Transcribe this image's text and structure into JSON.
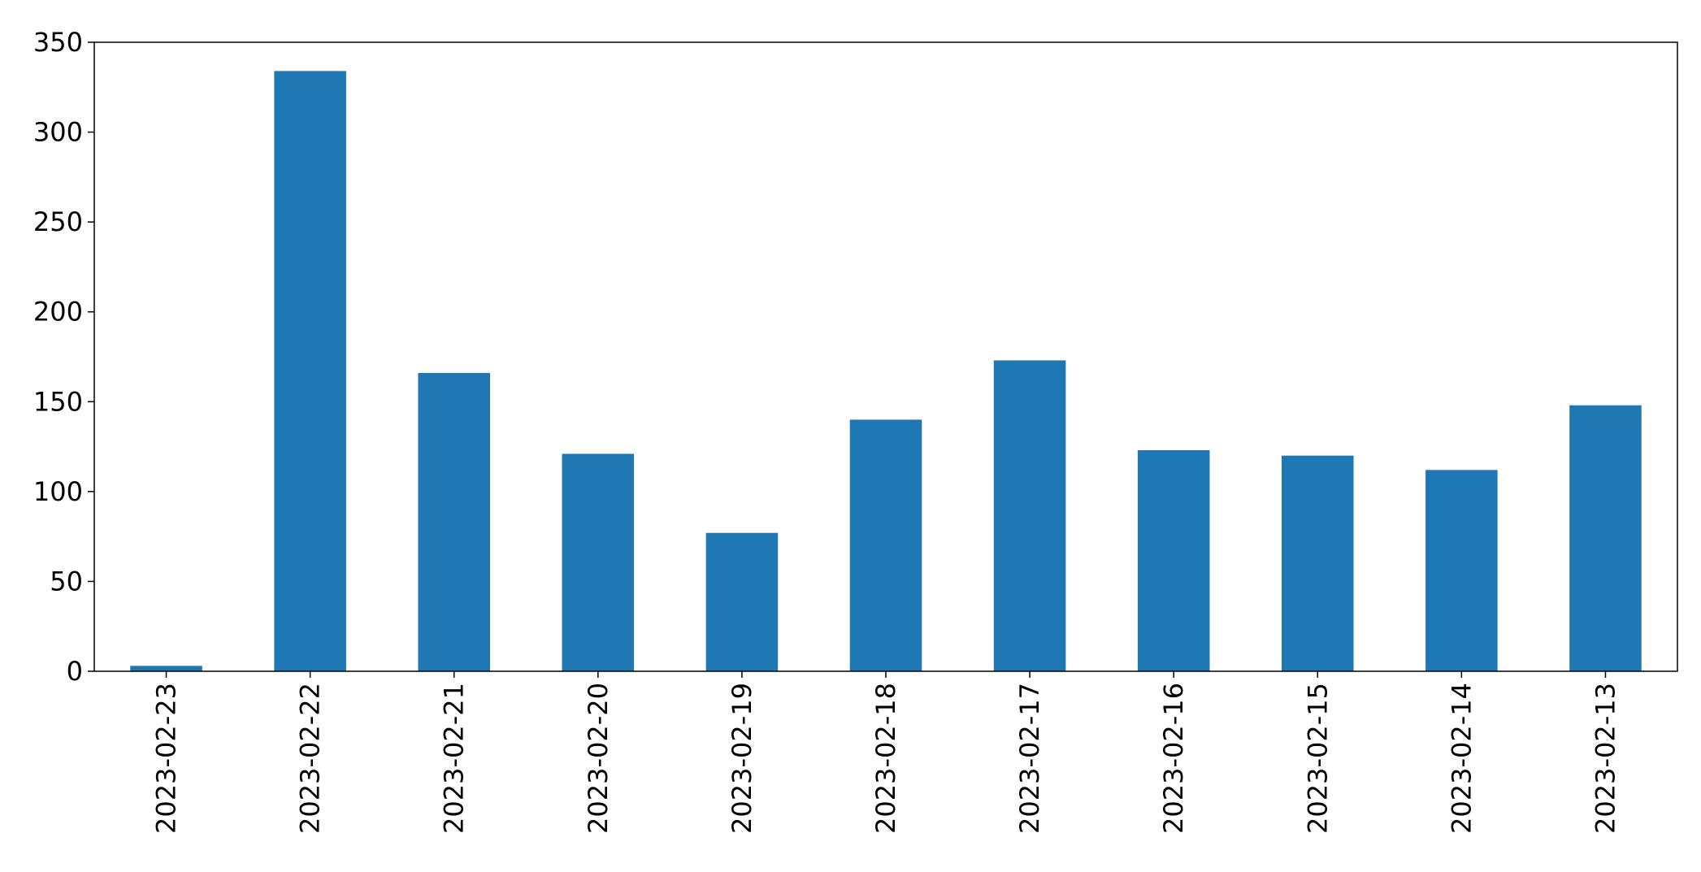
{
  "chart_data": {
    "type": "bar",
    "title": "",
    "xlabel": "",
    "ylabel": "",
    "categories": [
      "2023-02-23",
      "2023-02-22",
      "2023-02-21",
      "2023-02-20",
      "2023-02-19",
      "2023-02-18",
      "2023-02-17",
      "2023-02-16",
      "2023-02-15",
      "2023-02-14",
      "2023-02-13"
    ],
    "values": [
      3,
      334,
      166,
      121,
      77,
      140,
      173,
      123,
      120,
      112,
      148
    ],
    "ylim": [
      0,
      350
    ],
    "yticks": [
      0,
      50,
      100,
      150,
      200,
      250,
      300,
      350
    ],
    "bar_color": "#1f77b4",
    "grid": false,
    "legend": "none",
    "xtick_rotation": "vertical"
  }
}
